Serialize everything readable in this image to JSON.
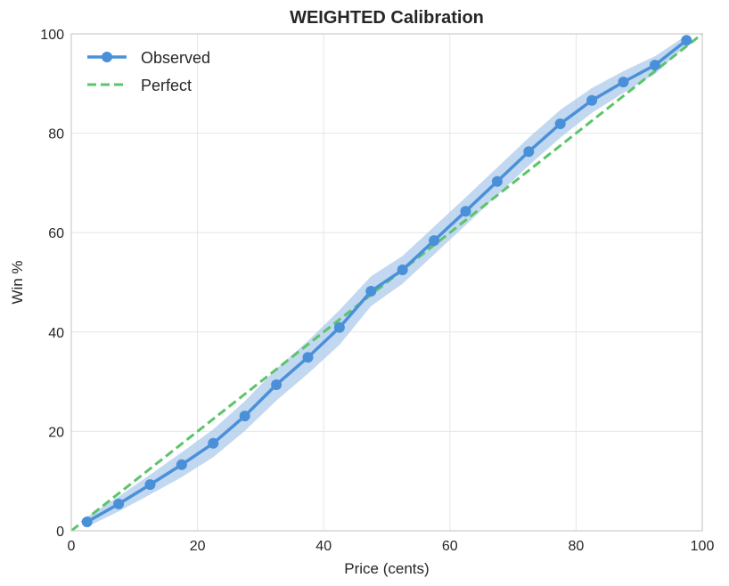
{
  "chart_data": {
    "type": "line",
    "title": "WEIGHTED Calibration",
    "xlabel": "Price (cents)",
    "ylabel": "Win %",
    "xlim": [
      0,
      100
    ],
    "ylim": [
      0,
      100
    ],
    "xticks": [
      0,
      20,
      40,
      60,
      80,
      100
    ],
    "yticks": [
      0,
      20,
      40,
      60,
      80,
      100
    ],
    "grid": true,
    "legend_position": "top-left",
    "colors": {
      "observed": "#4a90d9",
      "band": "#a8c8ea",
      "perfect": "#5cc46a"
    },
    "series": [
      {
        "name": "Observed",
        "x": [
          2.5,
          7.5,
          12.5,
          17.5,
          22.5,
          27.5,
          32.5,
          37.5,
          42.5,
          47.5,
          52.5,
          57.5,
          62.5,
          67.5,
          72.5,
          77.5,
          82.5,
          87.5,
          92.5,
          97.5
        ],
        "y": [
          1.8,
          5.4,
          9.3,
          13.3,
          17.6,
          23.1,
          29.4,
          34.9,
          40.9,
          48.2,
          52.5,
          58.4,
          64.3,
          70.3,
          76.3,
          81.9,
          86.6,
          90.3,
          93.7,
          98.7
        ],
        "band_lower": [
          0.8,
          3.9,
          7.3,
          10.8,
          14.8,
          20.1,
          26.2,
          31.6,
          37.4,
          45.2,
          49.7,
          55.6,
          61.5,
          67.5,
          73.5,
          79.1,
          84.1,
          88.1,
          91.9,
          97.7
        ],
        "band_upper": [
          2.8,
          6.9,
          11.3,
          15.8,
          20.4,
          26.1,
          32.6,
          38.2,
          44.4,
          51.2,
          55.3,
          61.2,
          67.1,
          73.1,
          79.1,
          84.7,
          89.1,
          92.5,
          95.5,
          99.7
        ]
      },
      {
        "name": "Perfect",
        "x": [
          0,
          100
        ],
        "y": [
          0,
          100
        ],
        "style": "dashed"
      }
    ]
  }
}
